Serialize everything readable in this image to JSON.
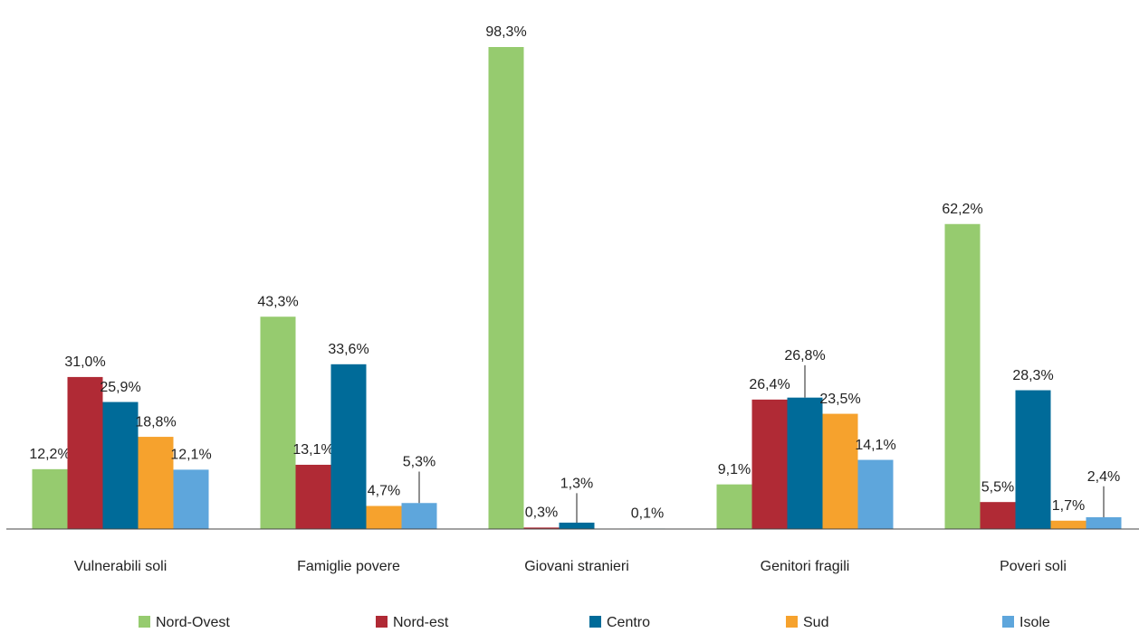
{
  "chart_data": {
    "type": "bar",
    "categories": [
      "Vulnerabili soli",
      "Famiglie povere",
      "Giovani stranieri",
      "Genitori fragili",
      "Poveri soli"
    ],
    "series": [
      {
        "name": "Nord-Ovest",
        "color": "#96cb6f",
        "values": [
          12.2,
          43.3,
          98.3,
          9.1,
          62.2
        ],
        "value_labels": [
          "12,2%",
          "43,3%",
          "98,3%",
          "9,1%",
          "62,2%"
        ]
      },
      {
        "name": "Nord-est",
        "color": "#b02a35",
        "values": [
          31.0,
          13.1,
          0.3,
          26.4,
          5.5
        ],
        "value_labels": [
          "31,0%",
          "13,1%",
          "0,3%",
          "26,4%",
          "5,5%"
        ]
      },
      {
        "name": "Centro",
        "color": "#006b99",
        "values": [
          25.9,
          33.6,
          1.3,
          26.8,
          28.3
        ],
        "value_labels": [
          "25,9%",
          "33,6%",
          "1,3%",
          "26,8%",
          "28,3%"
        ]
      },
      {
        "name": "Sud",
        "color": "#f6a22d",
        "values": [
          18.8,
          4.7,
          0.0,
          23.5,
          1.7
        ],
        "value_labels": [
          "18,8%",
          "4,7%",
          null,
          "23,5%",
          "1,7%"
        ]
      },
      {
        "name": "Isole",
        "color": "#5ea6dc",
        "values": [
          12.1,
          5.3,
          0.1,
          14.1,
          2.4
        ],
        "value_labels": [
          "12,1%",
          "5,3%",
          "0,1%",
          "14,1%",
          "2,4%"
        ]
      }
    ]
  }
}
